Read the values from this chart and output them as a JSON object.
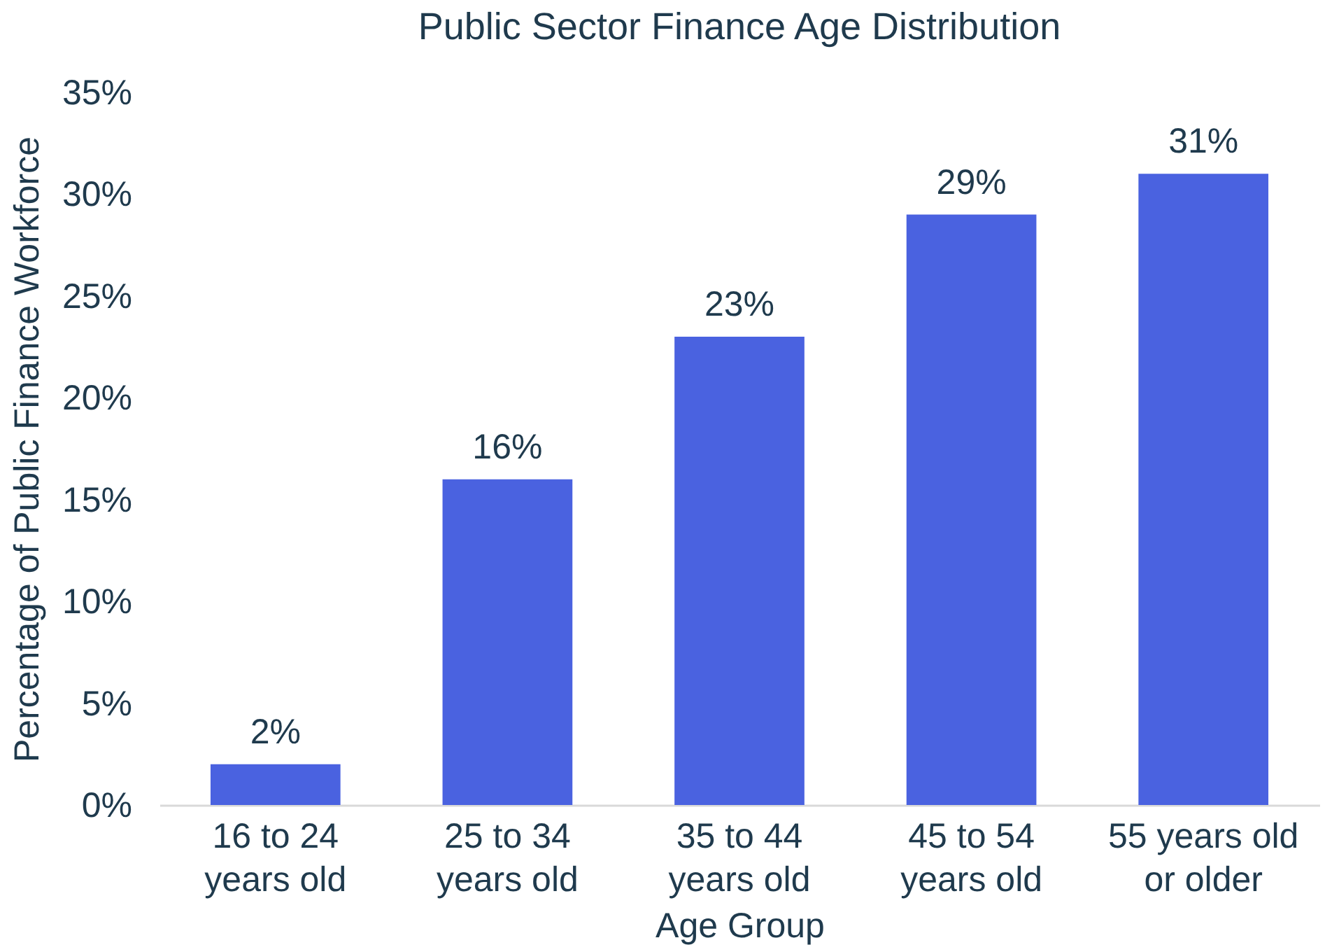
{
  "chart_data": {
    "type": "bar",
    "title": "Public Sector Finance Age Distribution",
    "xlabel": "Age Group",
    "ylabel": "Percentage of Public Finance Workforce",
    "categories": [
      "16 to 24 years old",
      "25 to 34 years old",
      "35 to 44 years old",
      "45 to 54 years old",
      "55 years old or older"
    ],
    "values": [
      2,
      16,
      23,
      29,
      31
    ],
    "color": "#4a62e0",
    "value_labels": [
      "2%",
      "16%",
      "23%",
      "29%",
      "31%"
    ],
    "ylim": [
      0,
      35
    ],
    "yticks": [
      {
        "value": 0,
        "label": "0%"
      },
      {
        "value": 5,
        "label": "5%"
      },
      {
        "value": 10,
        "label": "10%"
      },
      {
        "value": 15,
        "label": "15%"
      },
      {
        "value": 20,
        "label": "20%"
      },
      {
        "value": 25,
        "label": "25%"
      },
      {
        "value": 30,
        "label": "30%"
      },
      {
        "value": 35,
        "label": "35%"
      }
    ],
    "grid": false
  }
}
